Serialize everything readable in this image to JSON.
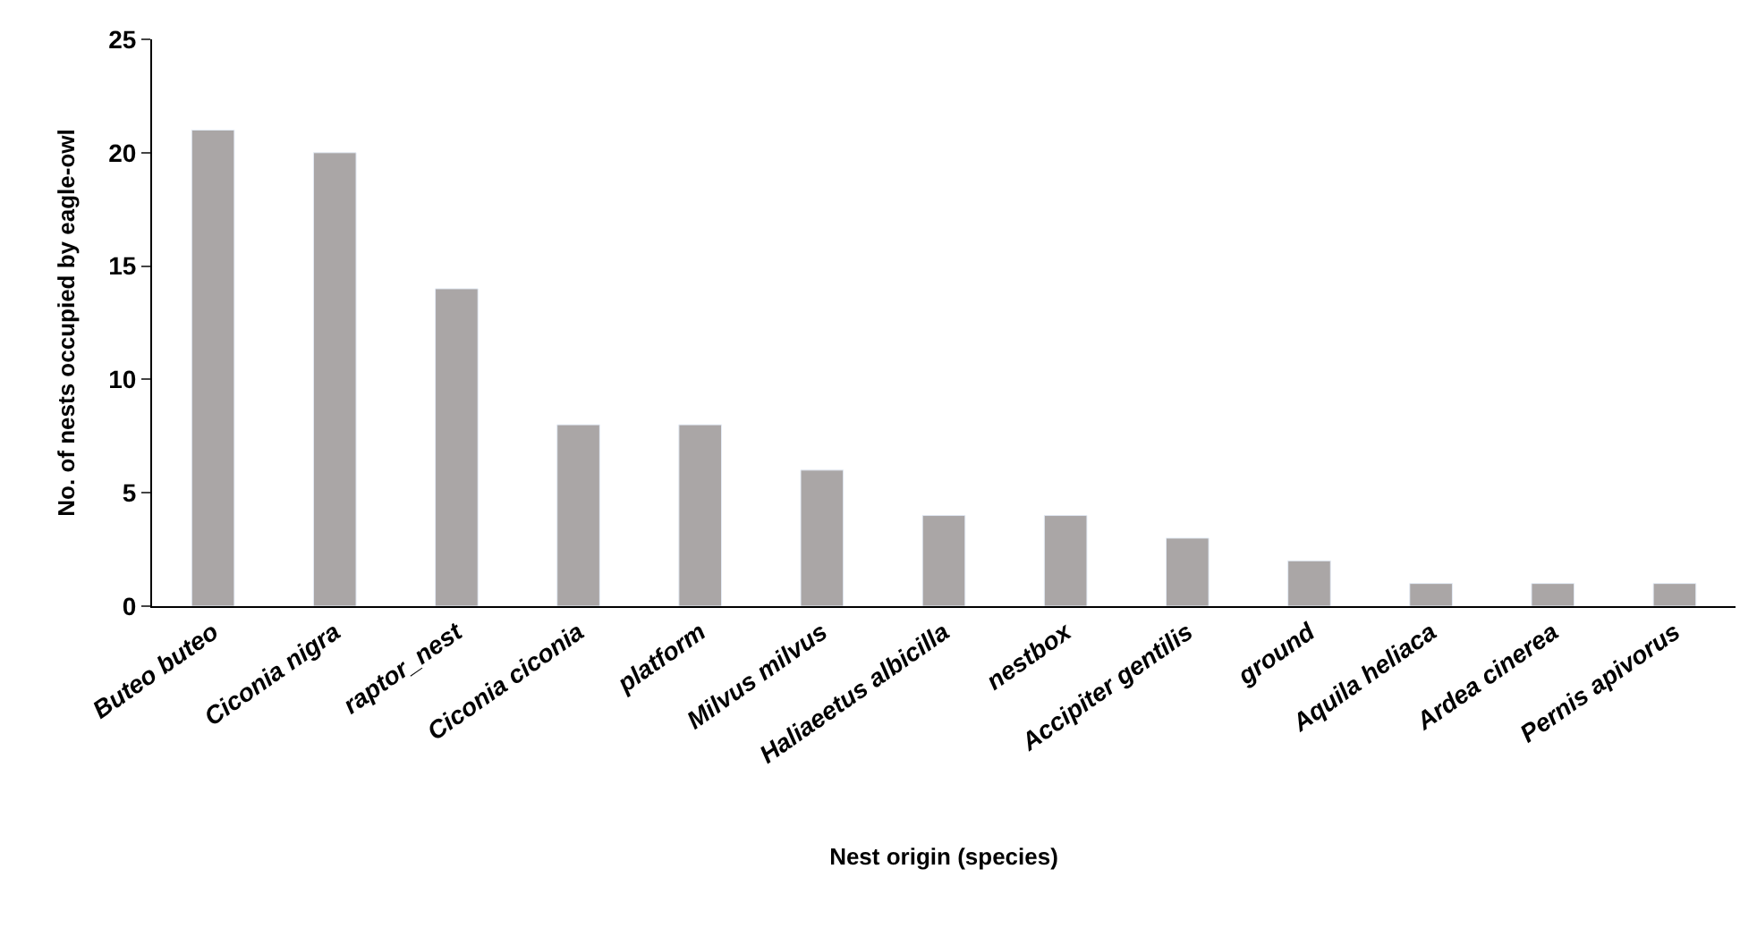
{
  "chart_data": {
    "type": "bar",
    "xlabel": "Nest origin (species)",
    "ylabel": "No. of nests occupied by eagle-owl",
    "categories": [
      "Buteo buteo",
      "Ciconia nigra",
      "raptor_nest",
      "Ciconia ciconia",
      "platform",
      "Milvus milvus",
      "Haliaeetus albicilla",
      "nestbox",
      "Accipiter gentilis",
      "ground",
      "Aquila heliaca",
      "Ardea cinerea",
      "Pernis apivorus"
    ],
    "values": [
      21,
      20,
      14,
      8,
      8,
      6,
      4,
      4,
      3,
      2,
      1,
      1,
      1
    ],
    "color": "#aaa6a6",
    "ylim": [
      0,
      25
    ],
    "yticks": [
      0,
      5,
      10,
      15,
      20,
      25
    ]
  }
}
